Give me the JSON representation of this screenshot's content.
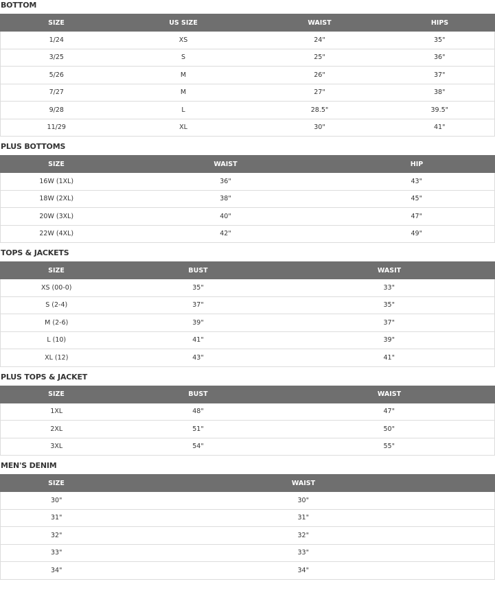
{
  "sections": [
    {
      "title": "BOTTOM",
      "headers": [
        "SIZE",
        "US SIZE",
        "WAIST",
        "HIPS"
      ],
      "widths": [
        163,
        207,
        190,
        160
      ],
      "rows": [
        [
          "1/24",
          "XS",
          "24\"",
          "35\""
        ],
        [
          "3/25",
          "S",
          "25\"",
          "36\""
        ],
        [
          "5/26",
          "M",
          "26\"",
          "37\""
        ],
        [
          "7/27",
          "M",
          "27\"",
          "38\""
        ],
        [
          "9/28",
          "L",
          "28.5\"",
          "39.5\""
        ],
        [
          "11/29",
          "XL",
          "30\"",
          "41\""
        ]
      ]
    },
    {
      "title": "PLUS BOTTOMS",
      "headers": [
        "SIZE",
        "WAIST",
        "HIP"
      ],
      "widths": [
        163,
        330,
        227
      ],
      "rows": [
        [
          "16W (1XL)",
          "36\"",
          "43\""
        ],
        [
          "18W (2XL)",
          "38\"",
          "45\""
        ],
        [
          "20W (3XL)",
          "40\"",
          "47\""
        ],
        [
          "22W (4XL)",
          "42\"",
          "49\""
        ]
      ]
    },
    {
      "title": "TOPS & JACKETS",
      "headers": [
        "SIZE",
        "BUST",
        "WASIT"
      ],
      "widths": [
        163,
        250,
        307
      ],
      "rows": [
        [
          "XS (00-0)",
          "35\"",
          "33\""
        ],
        [
          "S (2-4)",
          "37\"",
          "35\""
        ],
        [
          "M (2-6)",
          "39\"",
          "37\""
        ],
        [
          "L (10)",
          "41\"",
          "39\""
        ],
        [
          "XL (12)",
          "43\"",
          "41\""
        ]
      ]
    },
    {
      "title": "PLUS TOPS & JACKET",
      "headers": [
        "SIZE",
        "BUST",
        "WAIST"
      ],
      "widths": [
        163,
        250,
        307
      ],
      "rows": [
        [
          "1XL",
          "48\"",
          "47\""
        ],
        [
          "2XL",
          "51\"",
          "50\""
        ],
        [
          "3XL",
          "54\"",
          "55\""
        ]
      ]
    },
    {
      "title": "MEN'S DENIM",
      "headers": [
        "SIZE",
        "WAIST"
      ],
      "widths": [
        163,
        557
      ],
      "rows": [
        [
          "30\"",
          "30\""
        ],
        [
          "31\"",
          "31\""
        ],
        [
          "32\"",
          "32\""
        ],
        [
          "33\"",
          "33\""
        ],
        [
          "34\"",
          "34\""
        ]
      ]
    }
  ]
}
